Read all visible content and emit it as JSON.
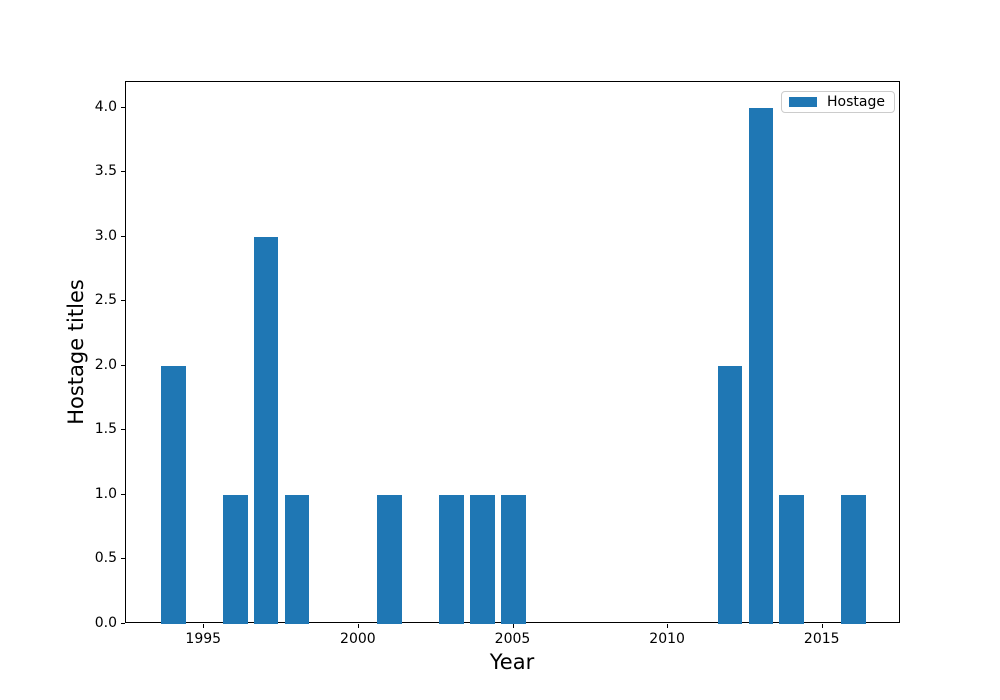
{
  "figure": {
    "background": "#ffffff",
    "axes_edge_color": "#000000",
    "legend_border_color": "#cccccc"
  },
  "chart_data": {
    "type": "bar",
    "title": "",
    "xlabel": "Year",
    "ylabel": "Hostage titles",
    "x": [
      1994,
      1996,
      1997,
      1998,
      2001,
      2003,
      2004,
      2005,
      2012,
      2013,
      2014,
      2016
    ],
    "series": [
      {
        "name": "Hostage",
        "color": "#1f77b4",
        "values": [
          2,
          1,
          3,
          1,
          1,
          1,
          1,
          1,
          2,
          4,
          1,
          1
        ]
      }
    ],
    "bar_width": 0.8,
    "xlim": [
      1992.47,
      2017.53
    ],
    "ylim": [
      0,
      4.2
    ],
    "xticks": [
      1995,
      2000,
      2005,
      2010,
      2015
    ],
    "xtick_labels": [
      "1995",
      "2000",
      "2005",
      "2010",
      "2015"
    ],
    "yticks": [
      0,
      0.5,
      1,
      1.5,
      2,
      2.5,
      3,
      3.5,
      4
    ],
    "ytick_labels": [
      "0.0",
      "0.5",
      "1.0",
      "1.5",
      "2.0",
      "2.5",
      "3.0",
      "3.5",
      "4.0"
    ],
    "grid": false,
    "legend": {
      "label": "Hostage",
      "position": "upper right"
    }
  }
}
